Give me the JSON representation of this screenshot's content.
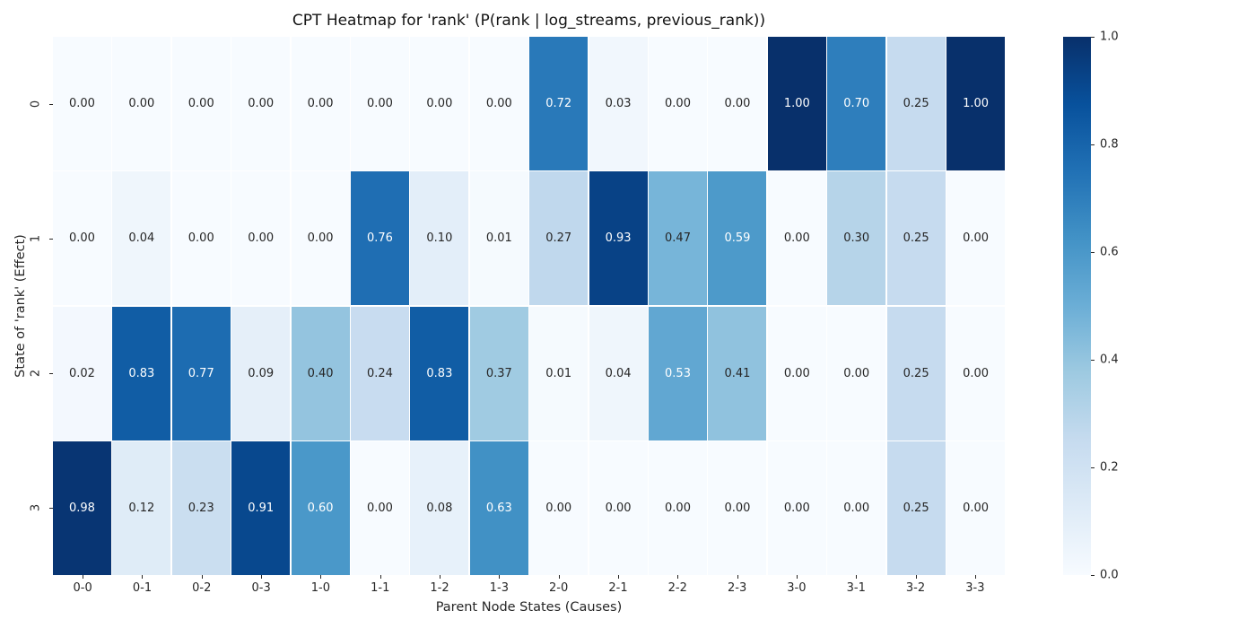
{
  "chart_data": {
    "type": "heatmap",
    "title": "CPT Heatmap for 'rank' (P(rank | log_streams, previous_rank))",
    "xlabel": "Parent Node States (Causes)",
    "ylabel": "State of 'rank' (Effect)",
    "x_categories": [
      "0-0",
      "0-1",
      "0-2",
      "0-3",
      "1-0",
      "1-1",
      "1-2",
      "1-3",
      "2-0",
      "2-1",
      "2-2",
      "2-3",
      "3-0",
      "3-1",
      "3-2",
      "3-3"
    ],
    "y_categories": [
      "0",
      "1",
      "2",
      "3"
    ],
    "values": [
      [
        0.0,
        0.0,
        0.0,
        0.0,
        0.0,
        0.0,
        0.0,
        0.0,
        0.72,
        0.03,
        0.0,
        0.0,
        1.0,
        0.7,
        0.25,
        1.0
      ],
      [
        0.0,
        0.04,
        0.0,
        0.0,
        0.0,
        0.76,
        0.1,
        0.01,
        0.27,
        0.93,
        0.47,
        0.59,
        0.0,
        0.3,
        0.25,
        0.0
      ],
      [
        0.02,
        0.83,
        0.77,
        0.09,
        0.4,
        0.24,
        0.83,
        0.37,
        0.01,
        0.04,
        0.53,
        0.41,
        0.0,
        0.0,
        0.25,
        0.0
      ],
      [
        0.98,
        0.12,
        0.23,
        0.91,
        0.6,
        0.0,
        0.08,
        0.63,
        0.0,
        0.0,
        0.0,
        0.0,
        0.0,
        0.0,
        0.25,
        0.0
      ]
    ],
    "value_format_decimals": 2,
    "vmin": 0.0,
    "vmax": 1.0,
    "colormap": "Blues",
    "colormap_stops": [
      "#f7fbff",
      "#deebf7",
      "#c6dbef",
      "#9ecae1",
      "#6baed6",
      "#4292c6",
      "#2171b5",
      "#08519c",
      "#08306b"
    ],
    "colorbar_ticks": [
      0.0,
      0.2,
      0.4,
      0.6,
      0.8,
      1.0
    ],
    "grid_line_color": "#ffffff",
    "annotation_text_dark": "#262626",
    "annotation_text_light": "#ffffff",
    "legend_position": "right-colorbar",
    "grid": "off"
  }
}
